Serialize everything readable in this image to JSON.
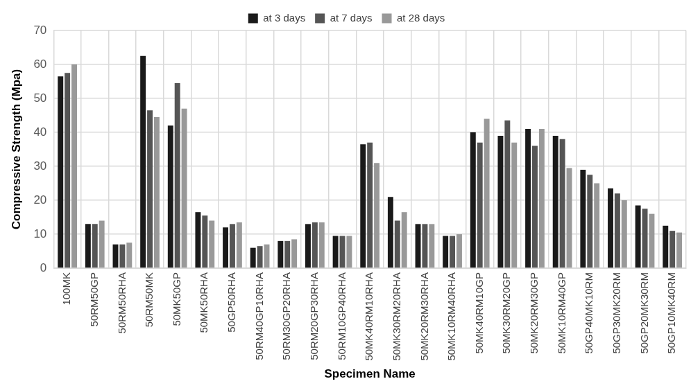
{
  "chart_data": {
    "type": "bar",
    "xlabel": "Specimen Name",
    "ylabel": "Compressive Strength (Mpa)",
    "categories": [
      "100MK",
      "50RM50GP",
      "50RM50RHA",
      "50RM50MK",
      "50MK50GP",
      "50MK50RHA",
      "50GP50RHA",
      "50RM40GP10RHA",
      "50RM30GP20RHA",
      "50RM20GP30RHA",
      "50RM10GP40RHA",
      "50MK40RM10RHA",
      "50MK30RM20RHA",
      "50MK20RM30RHA",
      "50MK10RM40RHA",
      "50MK40RM10GP",
      "50MK30RM20GP",
      "50MK20RM30GP",
      "50MK10RM40GP",
      "50GP40MK10RM",
      "50GP30MK20RM",
      "50GP20MK30RM",
      "50GP10MK40RM"
    ],
    "series": [
      {
        "name": "at 3 days",
        "color": "#1a1a1a",
        "values": [
          56.5,
          13,
          7,
          62.5,
          42,
          16.5,
          12,
          6,
          8,
          13,
          9.5,
          36.5,
          21,
          13,
          9.5,
          40,
          39,
          41,
          39,
          29,
          23.5,
          18.5,
          12.5
        ]
      },
      {
        "name": "at 7 days",
        "color": "#555555",
        "values": [
          57.5,
          13,
          7,
          46.5,
          54.5,
          15.5,
          13,
          6.5,
          8,
          13.5,
          9.5,
          37,
          14,
          13,
          9.5,
          37,
          43.5,
          36,
          38,
          27.5,
          22,
          17.5,
          11
        ]
      },
      {
        "name": "at 28 days",
        "color": "#999999",
        "values": [
          60,
          14,
          7.5,
          44.5,
          47,
          14,
          13.5,
          7,
          8.5,
          13.5,
          9.5,
          31,
          16.5,
          13,
          10,
          44,
          37,
          41,
          29.5,
          25,
          20,
          16,
          10.5
        ]
      }
    ],
    "ylim": [
      0,
      70
    ],
    "yticks": [
      0,
      10,
      20,
      30,
      40,
      50,
      60,
      70
    ],
    "grid": true,
    "legend": "top"
  }
}
